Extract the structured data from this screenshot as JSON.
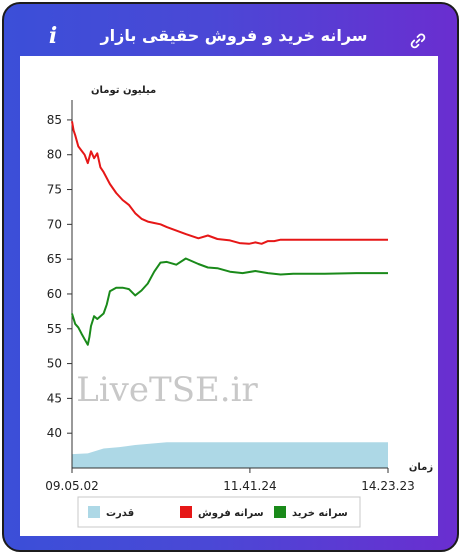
{
  "window": {
    "title": "سرانه خرید و فروش حقیقی بازار",
    "info_icon": "info-icon",
    "link_icon": "link-icon",
    "info_glyph": "i"
  },
  "chart_data": {
    "type": "line",
    "ylabel": "میلیون تومان",
    "xlabel": "زمان",
    "ylim": [
      35,
      87
    ],
    "y_ticks": [
      40,
      45,
      50,
      55,
      60,
      65,
      70,
      75,
      80,
      85
    ],
    "x_ticks": [
      "09.05.02",
      "11.41.24",
      "14.23.23"
    ],
    "x_domain": [
      0,
      100
    ],
    "x_tick_positions": [
      0,
      56.3,
      100
    ],
    "watermark": "LiveTSE.ir",
    "grid": false,
    "legend_position": "bottom",
    "series": [
      {
        "name": "سرانه فروش",
        "color": "#e61717",
        "x": [
          0,
          0.5,
          1,
          2,
          3,
          4,
          5,
          6,
          7,
          8,
          9,
          10,
          12,
          14,
          16,
          18,
          20,
          22,
          24,
          26,
          28,
          30,
          33,
          36,
          40,
          43,
          46,
          50,
          53,
          56,
          58,
          60,
          62,
          64,
          66,
          70,
          80,
          90,
          100
        ],
        "values": [
          84.8,
          83.5,
          82.8,
          81.2,
          80.6,
          80.0,
          78.8,
          80.5,
          79.5,
          80.2,
          78.2,
          77.5,
          75.8,
          74.5,
          73.5,
          72.8,
          71.6,
          70.8,
          70.4,
          70.2,
          70.0,
          69.6,
          69.1,
          68.6,
          68.0,
          68.4,
          67.9,
          67.7,
          67.3,
          67.2,
          67.4,
          67.2,
          67.6,
          67.6,
          67.8,
          67.8,
          67.8,
          67.8,
          67.8
        ]
      },
      {
        "name": "سرانه خرید",
        "color": "#1a8a1a",
        "x": [
          0,
          1,
          2,
          3,
          4,
          5,
          5.5,
          6,
          7,
          8,
          10,
          11,
          12,
          14,
          16,
          18,
          20,
          22,
          24,
          26,
          28,
          30,
          33,
          36,
          40,
          43,
          46,
          50,
          54,
          58,
          62,
          66,
          70,
          80,
          90,
          100
        ],
        "values": [
          57.2,
          55.7,
          55.2,
          54.3,
          53.5,
          52.7,
          53.8,
          55.4,
          56.8,
          56.4,
          57.2,
          58.5,
          60.4,
          60.9,
          60.9,
          60.7,
          59.8,
          60.5,
          61.5,
          63.2,
          64.5,
          64.6,
          64.2,
          65.1,
          64.3,
          63.8,
          63.7,
          63.2,
          63.0,
          63.3,
          63.0,
          62.8,
          62.9,
          62.9,
          63.0,
          63.0
        ]
      },
      {
        "name": "قدرت",
        "color": "#add8e6",
        "type": "area",
        "note_units": "relative",
        "x": [
          0,
          5,
          10,
          15,
          20,
          25,
          30,
          40,
          50,
          60,
          70,
          80,
          90,
          100
        ],
        "values": [
          37.0,
          37.1,
          37.8,
          38.0,
          38.3,
          38.5,
          38.7,
          38.7,
          38.7,
          38.7,
          38.7,
          38.7,
          38.7,
          38.7
        ]
      }
    ]
  }
}
